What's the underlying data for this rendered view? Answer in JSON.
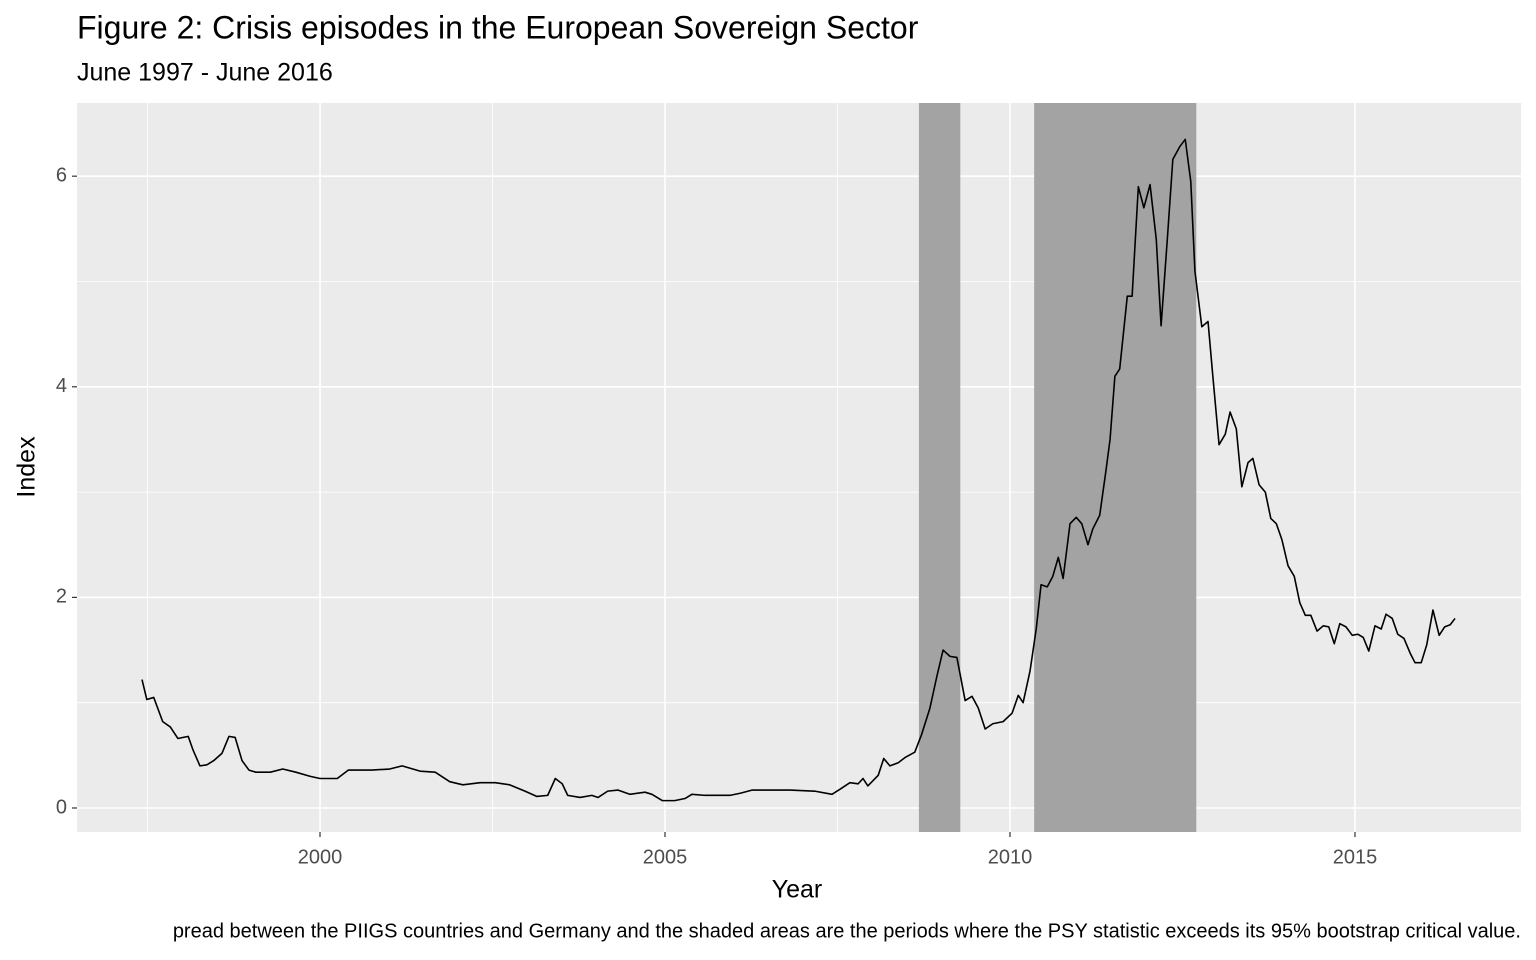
{
  "chart_data": {
    "type": "line",
    "title": "Figure 2: Crisis episodes in the European Sovereign Sector",
    "subtitle": "June 1997 - June 2016",
    "x_label": "Year",
    "y_label": "Index",
    "caption": "pread between the PIIGS countries and Germany and the shaded areas are the periods where the PSY statistic exceeds its 95% bootstrap critical value.",
    "color": "#000000",
    "shade_color": "#a3a3a3",
    "shaded_periods": [
      [
        2008.68,
        2009.28
      ],
      [
        2010.35,
        2012.7
      ]
    ],
    "xlim": [
      1996.478,
      2017.406
    ],
    "ylim": [
      -0.228,
      6.695
    ],
    "xticks": [
      2000,
      2005,
      2010,
      2015
    ],
    "yticks": [
      0,
      2,
      4,
      6
    ],
    "grid": true,
    "x": [
      1997.42,
      1997.49,
      1997.59,
      1997.72,
      1997.83,
      1997.94,
      1998.09,
      1998.16,
      1998.26,
      1998.36,
      1998.46,
      1998.58,
      1998.68,
      1998.77,
      1998.87,
      1998.97,
      1999.07,
      1999.28,
      1999.46,
      1999.65,
      1999.86,
      2000.0,
      2000.25,
      2000.41,
      2000.55,
      2000.75,
      2001.01,
      2001.19,
      2001.45,
      2001.67,
      2001.88,
      2002.07,
      2002.32,
      2002.54,
      2002.75,
      2002.97,
      2003.14,
      2003.3,
      2003.41,
      2003.51,
      2003.59,
      2003.77,
      2003.94,
      2004.03,
      2004.17,
      2004.32,
      2004.49,
      2004.71,
      2004.81,
      2004.96,
      2005.14,
      2005.29,
      2005.39,
      2005.58,
      2005.77,
      2005.94,
      2006.09,
      2006.26,
      2006.45,
      2006.81,
      2007.17,
      2007.42,
      2007.54,
      2007.68,
      2007.8,
      2007.87,
      2007.94,
      2008.09,
      2008.17,
      2008.26,
      2008.38,
      2008.48,
      2008.62,
      2008.72,
      2008.84,
      2008.94,
      2009.03,
      2009.13,
      2009.23,
      2009.35,
      2009.45,
      2009.54,
      2009.64,
      2009.75,
      2009.9,
      2010.03,
      2010.12,
      2010.19,
      2010.29,
      2010.38,
      2010.45,
      2010.54,
      2010.62,
      2010.7,
      2010.77,
      2010.87,
      2010.96,
      2011.04,
      2011.13,
      2011.2,
      2011.3,
      2011.39,
      2011.45,
      2011.52,
      2011.59,
      2011.7,
      2011.77,
      2011.86,
      2011.94,
      2012.03,
      2012.12,
      2012.19,
      2012.28,
      2012.36,
      2012.46,
      2012.54,
      2012.62,
      2012.68,
      2012.78,
      2012.87,
      2012.94,
      2013.03,
      2013.12,
      2013.19,
      2013.28,
      2013.36,
      2013.45,
      2013.52,
      2013.61,
      2013.7,
      2013.78,
      2013.86,
      2013.94,
      2014.03,
      2014.12,
      2014.2,
      2014.28,
      2014.36,
      2014.45,
      2014.54,
      2014.62,
      2014.7,
      2014.78,
      2014.87,
      2014.96,
      2015.04,
      2015.12,
      2015.2,
      2015.29,
      2015.38,
      2015.45,
      2015.54,
      2015.62,
      2015.71,
      2015.8,
      2015.87,
      2015.96,
      2016.04,
      2016.13,
      2016.22,
      2016.3,
      2016.38,
      2016.45
    ],
    "values": [
      1.22,
      1.03,
      1.05,
      0.82,
      0.77,
      0.66,
      0.68,
      0.55,
      0.4,
      0.41,
      0.45,
      0.52,
      0.68,
      0.67,
      0.45,
      0.36,
      0.34,
      0.34,
      0.37,
      0.34,
      0.3,
      0.28,
      0.28,
      0.36,
      0.36,
      0.36,
      0.37,
      0.4,
      0.35,
      0.34,
      0.25,
      0.22,
      0.24,
      0.24,
      0.22,
      0.16,
      0.11,
      0.12,
      0.28,
      0.23,
      0.12,
      0.1,
      0.12,
      0.1,
      0.16,
      0.17,
      0.13,
      0.15,
      0.13,
      0.07,
      0.07,
      0.09,
      0.13,
      0.12,
      0.12,
      0.12,
      0.14,
      0.17,
      0.17,
      0.17,
      0.16,
      0.13,
      0.18,
      0.24,
      0.23,
      0.28,
      0.21,
      0.31,
      0.47,
      0.4,
      0.43,
      0.48,
      0.53,
      0.7,
      0.95,
      1.25,
      1.5,
      1.44,
      1.43,
      1.02,
      1.06,
      0.95,
      0.75,
      0.8,
      0.82,
      0.9,
      1.07,
      1.0,
      1.3,
      1.7,
      2.12,
      2.1,
      2.2,
      2.38,
      2.18,
      2.7,
      2.76,
      2.7,
      2.5,
      2.65,
      2.78,
      3.2,
      3.5,
      4.1,
      4.17,
      4.86,
      4.86,
      5.9,
      5.7,
      5.92,
      5.4,
      4.58,
      5.4,
      6.16,
      6.28,
      6.35,
      5.95,
      5.1,
      4.57,
      4.62,
      4.1,
      3.45,
      3.55,
      3.76,
      3.6,
      3.05,
      3.28,
      3.32,
      3.07,
      3.0,
      2.75,
      2.7,
      2.55,
      2.3,
      2.2,
      1.95,
      1.83,
      1.83,
      1.68,
      1.73,
      1.72,
      1.56,
      1.75,
      1.72,
      1.64,
      1.65,
      1.62,
      1.49,
      1.73,
      1.7,
      1.84,
      1.8,
      1.65,
      1.61,
      1.47,
      1.38,
      1.38,
      1.55,
      1.88,
      1.64,
      1.72,
      1.74,
      1.8
    ]
  }
}
